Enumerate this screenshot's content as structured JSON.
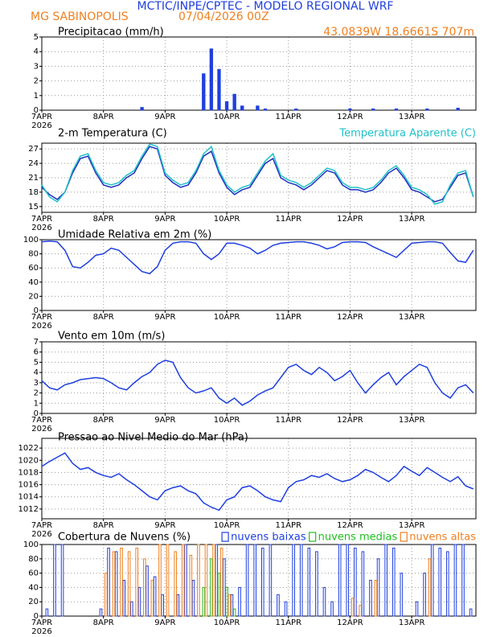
{
  "header": {
    "title": "MCTIC/INPE/CPTEC - MODELO REGIONAL WRF",
    "location": "MG SABINOPOLIS",
    "datetime": "07/04/2026 00Z",
    "coordinates": "43.0839W 18.6661S 707m"
  },
  "chart_data": [
    {
      "type": "bar",
      "title": "Precipitacao (mm/h)",
      "year": "2026",
      "x": [
        0,
        3,
        6,
        9,
        12,
        15,
        18,
        21,
        24,
        27,
        30,
        33,
        36,
        39,
        42,
        45,
        48,
        51,
        54,
        57,
        60,
        63,
        66,
        69,
        72,
        75,
        78,
        81,
        84,
        87,
        90,
        93,
        96,
        99,
        102,
        105,
        108,
        111,
        114,
        117,
        120,
        123,
        126,
        129,
        132,
        135,
        138,
        141,
        144,
        147,
        150,
        153,
        156,
        159,
        162,
        165,
        168
      ],
      "series": [
        {
          "color": "#1f3fdf",
          "values": [
            0,
            0,
            0,
            0,
            0,
            0,
            0,
            0,
            0,
            0,
            0,
            0,
            0,
            0.2,
            0,
            0,
            0,
            0,
            0,
            0,
            0,
            2.5,
            4.2,
            2.8,
            0.6,
            1.1,
            0.3,
            0,
            0.3,
            0.1,
            0,
            0,
            0,
            0.1,
            0,
            0,
            0,
            0,
            0,
            0,
            0.1,
            0,
            0,
            0.1,
            0,
            0,
            0.1,
            0,
            0,
            0,
            0.1,
            0,
            0,
            0,
            0.15,
            0,
            0
          ]
        }
      ],
      "hollow": false,
      "xlim": [
        0,
        169
      ],
      "xticks": [
        {
          "value": 0,
          "label": "7APR"
        },
        {
          "value": 24,
          "label": "8APR"
        },
        {
          "value": 48,
          "label": "9APR"
        },
        {
          "value": 72,
          "label": "10APR"
        },
        {
          "value": 96,
          "label": "11APR"
        },
        {
          "value": 120,
          "label": "12APR"
        },
        {
          "value": 144,
          "label": "13APR"
        }
      ],
      "ylim": [
        0,
        5
      ],
      "yticks": [
        0,
        1,
        2,
        3,
        4,
        5
      ],
      "grid": true
    },
    {
      "type": "line",
      "title": "2-m Temperatura (C)",
      "year": "2026",
      "x": [
        0,
        3,
        6,
        9,
        12,
        15,
        18,
        21,
        24,
        27,
        30,
        33,
        36,
        39,
        42,
        45,
        48,
        51,
        54,
        57,
        60,
        63,
        66,
        69,
        72,
        75,
        78,
        81,
        84,
        87,
        90,
        93,
        96,
        99,
        102,
        105,
        108,
        111,
        114,
        117,
        120,
        123,
        126,
        129,
        132,
        135,
        138,
        141,
        144,
        147,
        150,
        153,
        156,
        159,
        162,
        165,
        168
      ],
      "series": [
        {
          "color": "#1f2fbf",
          "values": [
            19,
            17.5,
            16.5,
            18,
            22,
            25,
            25.5,
            22,
            19.5,
            19,
            19.5,
            21,
            22,
            25,
            27.5,
            27,
            21.5,
            20,
            19,
            19.5,
            22,
            25.5,
            26.5,
            22,
            19,
            17.5,
            18.5,
            19,
            21.5,
            24,
            25,
            21,
            20,
            19.5,
            18.5,
            19.5,
            21,
            22.5,
            22,
            19.5,
            18.5,
            18.5,
            18,
            18.5,
            20,
            22,
            23,
            21,
            18.5,
            18,
            17,
            16,
            16.5,
            19,
            21.5,
            22,
            17
          ]
        },
        {
          "name": "Temperatura Aparente (C)",
          "color": "#20c0c8",
          "values": [
            19.5,
            17,
            16,
            18,
            22.5,
            25.5,
            26,
            22.5,
            20,
            19.5,
            20,
            21.5,
            22.5,
            25.5,
            28,
            27.5,
            22,
            20.5,
            19.5,
            20,
            22.5,
            26,
            27.5,
            22.5,
            19.5,
            18,
            19,
            19.5,
            22,
            24.5,
            26,
            21.5,
            20.5,
            20,
            19,
            20,
            21.5,
            23,
            22.5,
            20,
            19,
            19,
            18.5,
            19,
            20.5,
            22.5,
            23.5,
            21.5,
            19,
            18.5,
            17.5,
            15.5,
            16,
            19.5,
            22,
            22.5,
            17
          ]
        }
      ],
      "legend": "top-right",
      "xlim": [
        0,
        169
      ],
      "xticks": [
        {
          "value": 0,
          "label": "7APR"
        },
        {
          "value": 24,
          "label": "8APR"
        },
        {
          "value": 48,
          "label": "9APR"
        },
        {
          "value": 72,
          "label": "10APR"
        },
        {
          "value": 96,
          "label": "11APR"
        },
        {
          "value": 120,
          "label": "12APR"
        },
        {
          "value": 144,
          "label": "13APR"
        }
      ],
      "ylim": [
        13.8,
        28.2
      ],
      "yticks": [
        15,
        18,
        21,
        24,
        27
      ],
      "grid": true
    },
    {
      "type": "line",
      "title": "Umidade Relativa em 2m (%)",
      "year": "2026",
      "x": [
        0,
        3,
        6,
        9,
        12,
        15,
        18,
        21,
        24,
        27,
        30,
        33,
        36,
        39,
        42,
        45,
        48,
        51,
        54,
        57,
        60,
        63,
        66,
        69,
        72,
        75,
        78,
        81,
        84,
        87,
        90,
        93,
        96,
        99,
        102,
        105,
        108,
        111,
        114,
        117,
        120,
        123,
        126,
        129,
        132,
        135,
        138,
        141,
        144,
        147,
        150,
        153,
        156,
        159,
        162,
        165,
        168
      ],
      "series": [
        {
          "color": "#1f3fdf",
          "values": [
            97,
            98,
            97,
            85,
            62,
            60,
            68,
            78,
            80,
            88,
            85,
            75,
            65,
            55,
            52,
            62,
            85,
            95,
            97,
            97,
            95,
            80,
            72,
            80,
            95,
            95,
            92,
            88,
            80,
            85,
            92,
            95,
            96,
            97,
            97,
            95,
            92,
            87,
            90,
            96,
            97,
            97,
            96,
            90,
            85,
            80,
            75,
            85,
            95,
            96,
            97,
            97,
            95,
            82,
            70,
            68,
            85
          ]
        }
      ],
      "xlim": [
        0,
        169
      ],
      "xticks": [
        {
          "value": 0,
          "label": "7APR"
        },
        {
          "value": 24,
          "label": "8APR"
        },
        {
          "value": 48,
          "label": "9APR"
        },
        {
          "value": 72,
          "label": "10APR"
        },
        {
          "value": 96,
          "label": "11APR"
        },
        {
          "value": 120,
          "label": "12APR"
        },
        {
          "value": 144,
          "label": "13APR"
        }
      ],
      "ylim": [
        0,
        100
      ],
      "yticks": [
        0,
        20,
        40,
        60,
        80,
        100
      ],
      "grid": true
    },
    {
      "type": "line",
      "title": "Vento em 10m (m/s)",
      "year": "2026",
      "x": [
        0,
        3,
        6,
        9,
        12,
        15,
        18,
        21,
        24,
        27,
        30,
        33,
        36,
        39,
        42,
        45,
        48,
        51,
        54,
        57,
        60,
        63,
        66,
        69,
        72,
        75,
        78,
        81,
        84,
        87,
        90,
        93,
        96,
        99,
        102,
        105,
        108,
        111,
        114,
        117,
        120,
        123,
        126,
        129,
        132,
        135,
        138,
        141,
        144,
        147,
        150,
        153,
        156,
        159,
        162,
        165,
        168
      ],
      "series": [
        {
          "color": "#1f3fdf",
          "values": [
            3.2,
            2.5,
            2.3,
            2.8,
            3.0,
            3.3,
            3.4,
            3.5,
            3.4,
            3.0,
            2.5,
            2.3,
            3.0,
            3.6,
            4.0,
            4.8,
            5.2,
            5.0,
            3.5,
            2.5,
            2.0,
            2.2,
            2.5,
            1.5,
            1.0,
            1.5,
            0.8,
            1.2,
            1.8,
            2.2,
            2.5,
            3.5,
            4.5,
            4.8,
            4.2,
            3.8,
            4.5,
            4.0,
            3.2,
            3.6,
            4.2,
            3.0,
            2.0,
            2.8,
            3.5,
            4.0,
            2.8,
            3.6,
            4.2,
            4.8,
            4.5,
            3.0,
            2.0,
            1.5,
            2.5,
            2.8,
            2.0
          ]
        }
      ],
      "xlim": [
        0,
        169
      ],
      "xticks": [
        {
          "value": 0,
          "label": "7APR"
        },
        {
          "value": 24,
          "label": "8APR"
        },
        {
          "value": 48,
          "label": "9APR"
        },
        {
          "value": 72,
          "label": "10APR"
        },
        {
          "value": 96,
          "label": "11APR"
        },
        {
          "value": 120,
          "label": "12APR"
        },
        {
          "value": 144,
          "label": "13APR"
        }
      ],
      "ylim": [
        0,
        7
      ],
      "yticks": [
        0,
        1,
        2,
        3,
        4,
        5,
        6,
        7
      ],
      "grid": true
    },
    {
      "type": "line",
      "title": "Pressao ao Nivel Medio do Mar (hPa)",
      "year": "2026",
      "x": [
        0,
        3,
        6,
        9,
        12,
        15,
        18,
        21,
        24,
        27,
        30,
        33,
        36,
        39,
        42,
        45,
        48,
        51,
        54,
        57,
        60,
        63,
        66,
        69,
        72,
        75,
        78,
        81,
        84,
        87,
        90,
        93,
        96,
        99,
        102,
        105,
        108,
        111,
        114,
        117,
        120,
        123,
        126,
        129,
        132,
        135,
        138,
        141,
        144,
        147,
        150,
        153,
        156,
        159,
        162,
        165,
        168
      ],
      "series": [
        {
          "color": "#1f3fdf",
          "values": [
            1019,
            1019.8,
            1020.5,
            1021.2,
            1019.5,
            1018.5,
            1018.8,
            1018,
            1017.5,
            1017.2,
            1017.8,
            1016.8,
            1016,
            1015,
            1014,
            1013.5,
            1015,
            1015.5,
            1015.8,
            1015,
            1014.5,
            1013,
            1012.3,
            1011.8,
            1013.5,
            1014,
            1015.5,
            1015.8,
            1015,
            1014,
            1013.5,
            1013.2,
            1015.5,
            1016.5,
            1016.8,
            1017.5,
            1017.2,
            1017.8,
            1017,
            1016.5,
            1016.8,
            1017.5,
            1018.5,
            1018,
            1017.2,
            1016.5,
            1017.5,
            1019,
            1018.2,
            1017.5,
            1018.8,
            1018,
            1017.2,
            1016.5,
            1017.3,
            1015.8,
            1015.3
          ]
        }
      ],
      "xlim": [
        0,
        169
      ],
      "xticks": [
        {
          "value": 0,
          "label": "7APR"
        },
        {
          "value": 24,
          "label": "8APR"
        },
        {
          "value": 48,
          "label": "9APR"
        },
        {
          "value": 72,
          "label": "10APR"
        },
        {
          "value": 96,
          "label": "11APR"
        },
        {
          "value": 120,
          "label": "12APR"
        },
        {
          "value": 144,
          "label": "13APR"
        }
      ],
      "ylim": [
        1010.4,
        1023.6
      ],
      "yticks": [
        1012,
        1014,
        1016,
        1018,
        1020,
        1022
      ],
      "grid": true
    },
    {
      "type": "bar",
      "title": "Cobertura de Nuvens (%)",
      "year": "2026",
      "x": [
        0,
        3,
        6,
        9,
        12,
        15,
        18,
        21,
        24,
        27,
        30,
        33,
        36,
        39,
        42,
        45,
        48,
        51,
        54,
        57,
        60,
        63,
        66,
        69,
        72,
        75,
        78,
        81,
        84,
        87,
        90,
        93,
        96,
        99,
        102,
        105,
        108,
        111,
        114,
        117,
        120,
        123,
        126,
        129,
        132,
        135,
        138,
        141,
        144,
        147,
        150,
        153,
        156,
        159,
        162,
        165,
        168
      ],
      "series": [
        {
          "name": "nuvens baixas",
          "color": "#1f3fdf",
          "values": [
            0,
            10,
            100,
            100,
            0,
            0,
            0,
            0,
            10,
            95,
            90,
            50,
            20,
            40,
            70,
            55,
            30,
            0,
            30,
            100,
            50,
            0,
            0,
            100,
            80,
            30,
            40,
            100,
            100,
            95,
            100,
            30,
            20,
            100,
            100,
            95,
            90,
            40,
            20,
            100,
            100,
            95,
            90,
            50,
            80,
            100,
            95,
            60,
            0,
            20,
            60,
            100,
            95,
            90,
            100,
            100,
            10
          ]
        },
        {
          "name": "nuvens medias",
          "color": "#20c020",
          "values": [
            0,
            0,
            0,
            0,
            0,
            0,
            0,
            0,
            0,
            0,
            0,
            0,
            0,
            0,
            0,
            0,
            0,
            0,
            0,
            0,
            0,
            40,
            80,
            60,
            40,
            10,
            0,
            0,
            0,
            0,
            0,
            0,
            0,
            0,
            0,
            0,
            0,
            0,
            0,
            0,
            0,
            0,
            0,
            0,
            0,
            0,
            0,
            0,
            0,
            0,
            0,
            0,
            0,
            0,
            0,
            0,
            0
          ]
        },
        {
          "name": "nuvens altas",
          "color": "#f08020",
          "values": [
            0,
            0,
            0,
            0,
            0,
            0,
            0,
            0,
            60,
            90,
            95,
            90,
            95,
            80,
            50,
            100,
            100,
            90,
            100,
            85,
            100,
            100,
            100,
            95,
            30,
            0,
            0,
            0,
            0,
            0,
            0,
            0,
            0,
            0,
            0,
            0,
            0,
            0,
            0,
            0,
            25,
            15,
            0,
            50,
            0,
            0,
            0,
            0,
            0,
            0,
            80,
            0,
            0,
            0,
            0,
            0,
            0
          ]
        }
      ],
      "hollow": true,
      "legend": "top-right",
      "xlim": [
        0,
        169
      ],
      "xticks": [
        {
          "value": 0,
          "label": "7APR"
        },
        {
          "value": 24,
          "label": "8APR"
        },
        {
          "value": 48,
          "label": "9APR"
        },
        {
          "value": 72,
          "label": "10APR"
        },
        {
          "value": 96,
          "label": "11APR"
        },
        {
          "value": 120,
          "label": "12APR"
        },
        {
          "value": 144,
          "label": "13APR"
        }
      ],
      "ylim": [
        0,
        100
      ],
      "yticks": [
        0,
        20,
        40,
        60,
        80,
        100
      ],
      "grid": true
    }
  ]
}
